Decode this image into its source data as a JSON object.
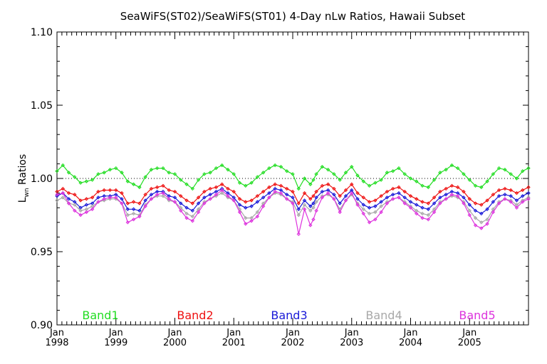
{
  "chart_data": {
    "type": "line",
    "title": "SeaWiFS(ST02)/SeaWiFS(ST01) 4-Day nLw Ratios, Hawaii Subset",
    "xlabel": "",
    "ylabel": "L_wn Ratios",
    "ylabel_main": "L",
    "ylabel_sub": "wn",
    "ylabel_rest": " Ratios",
    "xlim": [
      1998.0,
      2006.0
    ],
    "ylim": [
      0.9,
      1.1
    ],
    "y_ticks": [
      "0.90",
      "0.95",
      "1.00",
      "1.05",
      "1.10"
    ],
    "y_tick_values": [
      0.9,
      0.95,
      1.0,
      1.05,
      1.1
    ],
    "x_ticks": [
      {
        "month": "Jan",
        "year": "1998",
        "value": 1998.0
      },
      {
        "month": "Jan",
        "year": "1999",
        "value": 1999.0
      },
      {
        "month": "Jan",
        "year": "2000",
        "value": 2000.0
      },
      {
        "month": "Jan",
        "year": "2001",
        "value": 2001.0
      },
      {
        "month": "Jan",
        "year": "2002",
        "value": 2002.0
      },
      {
        "month": "Jan",
        "year": "2003",
        "value": 2003.0
      },
      {
        "month": "Jan",
        "year": "2004",
        "value": 2004.0
      },
      {
        "month": "Jan",
        "year": "2005",
        "value": 2005.0
      }
    ],
    "reference_line": 1.0,
    "legend_placement": "bottom, inside plot",
    "series": [
      {
        "name": "Band1",
        "color": "#22dd22",
        "x": [
          1998.0,
          1998.1,
          1998.2,
          1998.3,
          1998.4,
          1998.5,
          1998.6,
          1998.7,
          1998.8,
          1998.9,
          1999.0,
          1999.1,
          1999.2,
          1999.3,
          1999.4,
          1999.5,
          1999.6,
          1999.7,
          1999.8,
          1999.9,
          2000.0,
          2000.1,
          2000.2,
          2000.3,
          2000.4,
          2000.5,
          2000.6,
          2000.7,
          2000.8,
          2000.9,
          2001.0,
          2001.1,
          2001.2,
          2001.3,
          2001.4,
          2001.5,
          2001.6,
          2001.7,
          2001.8,
          2001.9,
          2002.0,
          2002.1,
          2002.2,
          2002.3,
          2002.35,
          2002.4,
          2002.5,
          2002.6,
          2002.7,
          2002.8,
          2002.9,
          2003.0,
          2003.1,
          2003.2,
          2003.3,
          2003.4,
          2003.5,
          2003.6,
          2003.7,
          2003.8,
          2003.9,
          2004.0,
          2004.1,
          2004.2,
          2004.3,
          2004.4,
          2004.5,
          2004.6,
          2004.7,
          2004.8,
          2004.9,
          2005.0,
          2005.1,
          2005.2,
          2005.3,
          2005.4,
          2005.5,
          2005.6,
          2005.7,
          2005.8,
          2005.9,
          2006.0
        ],
        "y": [
          1.005,
          1.009,
          1.004,
          1.001,
          0.997,
          0.998,
          0.999,
          1.003,
          1.004,
          1.006,
          1.007,
          1.004,
          0.998,
          0.996,
          0.994,
          1.001,
          1.006,
          1.007,
          1.007,
          1.004,
          1.003,
          0.999,
          0.996,
          0.993,
          0.999,
          1.003,
          1.004,
          1.007,
          1.009,
          1.006,
          1.003,
          0.997,
          0.995,
          0.997,
          1.001,
          1.004,
          1.007,
          1.009,
          1.008,
          1.005,
          1.003,
          0.993,
          1.0,
          0.996,
          0.999,
          1.003,
          1.008,
          1.006,
          1.003,
          0.999,
          1.004,
          1.008,
          1.002,
          0.998,
          0.995,
          0.997,
          0.999,
          1.004,
          1.005,
          1.007,
          1.003,
          1.0,
          0.998,
          0.995,
          0.994,
          0.999,
          1.004,
          1.006,
          1.009,
          1.007,
          1.003,
          0.999,
          0.995,
          0.994,
          0.998,
          1.003,
          1.007,
          1.006,
          1.003,
          1.0,
          1.005,
          1.007
        ]
      },
      {
        "name": "Band2",
        "color": "#ee1111",
        "x": [
          1998.0,
          1998.1,
          1998.2,
          1998.3,
          1998.4,
          1998.5,
          1998.6,
          1998.7,
          1998.8,
          1998.9,
          1999.0,
          1999.1,
          1999.2,
          1999.3,
          1999.4,
          1999.5,
          1999.6,
          1999.7,
          1999.8,
          1999.9,
          2000.0,
          2000.1,
          2000.2,
          2000.3,
          2000.4,
          2000.5,
          2000.6,
          2000.7,
          2000.8,
          2000.9,
          2001.0,
          2001.1,
          2001.2,
          2001.3,
          2001.4,
          2001.5,
          2001.6,
          2001.7,
          2001.8,
          2001.9,
          2002.0,
          2002.1,
          2002.2,
          2002.3,
          2002.35,
          2002.4,
          2002.5,
          2002.6,
          2002.7,
          2002.8,
          2002.9,
          2003.0,
          2003.1,
          2003.2,
          2003.3,
          2003.4,
          2003.5,
          2003.6,
          2003.7,
          2003.8,
          2003.9,
          2004.0,
          2004.1,
          2004.2,
          2004.3,
          2004.4,
          2004.5,
          2004.6,
          2004.7,
          2004.8,
          2004.9,
          2005.0,
          2005.1,
          2005.2,
          2005.3,
          2005.4,
          2005.5,
          2005.6,
          2005.7,
          2005.8,
          2005.9,
          2006.0
        ],
        "y": [
          0.991,
          0.993,
          0.99,
          0.989,
          0.985,
          0.986,
          0.987,
          0.991,
          0.992,
          0.992,
          0.992,
          0.99,
          0.983,
          0.984,
          0.983,
          0.989,
          0.993,
          0.994,
          0.995,
          0.992,
          0.991,
          0.988,
          0.985,
          0.983,
          0.987,
          0.991,
          0.993,
          0.994,
          0.996,
          0.993,
          0.991,
          0.986,
          0.984,
          0.985,
          0.988,
          0.991,
          0.994,
          0.996,
          0.995,
          0.993,
          0.991,
          0.983,
          0.99,
          0.986,
          0.988,
          0.991,
          0.995,
          0.996,
          0.993,
          0.988,
          0.992,
          0.996,
          0.99,
          0.987,
          0.984,
          0.985,
          0.988,
          0.991,
          0.993,
          0.994,
          0.991,
          0.988,
          0.986,
          0.984,
          0.983,
          0.987,
          0.991,
          0.993,
          0.995,
          0.994,
          0.991,
          0.986,
          0.983,
          0.982,
          0.985,
          0.989,
          0.992,
          0.993,
          0.992,
          0.99,
          0.992,
          0.994
        ]
      },
      {
        "name": "Band3",
        "color": "#1a1ad8",
        "x": [
          1998.0,
          1998.1,
          1998.2,
          1998.3,
          1998.4,
          1998.5,
          1998.6,
          1998.7,
          1998.8,
          1998.9,
          1999.0,
          1999.1,
          1999.2,
          1999.3,
          1999.4,
          1999.5,
          1999.6,
          1999.7,
          1999.8,
          1999.9,
          2000.0,
          2000.1,
          2000.2,
          2000.3,
          2000.4,
          2000.5,
          2000.6,
          2000.7,
          2000.8,
          2000.9,
          2001.0,
          2001.1,
          2001.2,
          2001.3,
          2001.4,
          2001.5,
          2001.6,
          2001.7,
          2001.8,
          2001.9,
          2002.0,
          2002.1,
          2002.2,
          2002.3,
          2002.35,
          2002.4,
          2002.5,
          2002.6,
          2002.7,
          2002.8,
          2002.9,
          2003.0,
          2003.1,
          2003.2,
          2003.3,
          2003.4,
          2003.5,
          2003.6,
          2003.7,
          2003.8,
          2003.9,
          2004.0,
          2004.1,
          2004.2,
          2004.3,
          2004.4,
          2004.5,
          2004.6,
          2004.7,
          2004.8,
          2004.9,
          2005.0,
          2005.1,
          2005.2,
          2005.3,
          2005.4,
          2005.5,
          2005.6,
          2005.7,
          2005.8,
          2005.9,
          2006.0
        ],
        "y": [
          0.988,
          0.99,
          0.986,
          0.984,
          0.98,
          0.982,
          0.983,
          0.987,
          0.988,
          0.988,
          0.989,
          0.986,
          0.979,
          0.979,
          0.978,
          0.985,
          0.989,
          0.991,
          0.991,
          0.988,
          0.987,
          0.983,
          0.98,
          0.978,
          0.983,
          0.987,
          0.989,
          0.991,
          0.993,
          0.99,
          0.987,
          0.982,
          0.98,
          0.981,
          0.984,
          0.987,
          0.99,
          0.993,
          0.992,
          0.989,
          0.987,
          0.979,
          0.985,
          0.981,
          0.983,
          0.987,
          0.991,
          0.992,
          0.989,
          0.983,
          0.988,
          0.992,
          0.986,
          0.982,
          0.98,
          0.981,
          0.984,
          0.987,
          0.989,
          0.99,
          0.987,
          0.984,
          0.982,
          0.98,
          0.979,
          0.983,
          0.987,
          0.989,
          0.991,
          0.99,
          0.987,
          0.982,
          0.978,
          0.976,
          0.979,
          0.984,
          0.988,
          0.989,
          0.988,
          0.985,
          0.988,
          0.99
        ]
      },
      {
        "name": "Band4",
        "color": "#a8a8a8",
        "x": [
          1998.0,
          1998.1,
          1998.2,
          1998.3,
          1998.4,
          1998.5,
          1998.6,
          1998.7,
          1998.8,
          1998.9,
          1999.0,
          1999.1,
          1999.2,
          1999.3,
          1999.4,
          1999.5,
          1999.6,
          1999.7,
          1999.8,
          1999.9,
          2000.0,
          2000.1,
          2000.2,
          2000.3,
          2000.4,
          2000.5,
          2000.6,
          2000.7,
          2000.8,
          2000.9,
          2001.0,
          2001.1,
          2001.2,
          2001.3,
          2001.4,
          2001.5,
          2001.6,
          2001.7,
          2001.8,
          2001.9,
          2002.0,
          2002.1,
          2002.2,
          2002.3,
          2002.35,
          2002.4,
          2002.5,
          2002.6,
          2002.7,
          2002.8,
          2002.9,
          2003.0,
          2003.1,
          2003.2,
          2003.3,
          2003.4,
          2003.5,
          2003.6,
          2003.7,
          2003.8,
          2003.9,
          2004.0,
          2004.1,
          2004.2,
          2004.3,
          2004.4,
          2004.5,
          2004.6,
          2004.7,
          2004.8,
          2004.9,
          2005.0,
          2005.1,
          2005.2,
          2005.3,
          2005.4,
          2005.5,
          2005.6,
          2005.7,
          2005.8,
          2005.9,
          2006.0
        ],
        "y": [
          0.985,
          0.987,
          0.983,
          0.982,
          0.978,
          0.979,
          0.981,
          0.984,
          0.985,
          0.986,
          0.986,
          0.983,
          0.975,
          0.976,
          0.975,
          0.982,
          0.986,
          0.988,
          0.988,
          0.985,
          0.984,
          0.98,
          0.976,
          0.974,
          0.979,
          0.984,
          0.986,
          0.988,
          0.99,
          0.987,
          0.985,
          0.979,
          0.973,
          0.973,
          0.977,
          0.983,
          0.987,
          0.99,
          0.989,
          0.986,
          0.984,
          0.975,
          0.982,
          0.978,
          0.98,
          0.984,
          0.988,
          0.989,
          0.986,
          0.979,
          0.985,
          0.989,
          0.983,
          0.979,
          0.976,
          0.977,
          0.981,
          0.984,
          0.986,
          0.987,
          0.984,
          0.981,
          0.978,
          0.976,
          0.975,
          0.979,
          0.984,
          0.986,
          0.988,
          0.987,
          0.984,
          0.978,
          0.973,
          0.97,
          0.972,
          0.979,
          0.984,
          0.986,
          0.985,
          0.982,
          0.985,
          0.987
        ]
      },
      {
        "name": "Band5",
        "color": "#dd33dd",
        "x": [
          1998.0,
          1998.1,
          1998.2,
          1998.3,
          1998.4,
          1998.5,
          1998.6,
          1998.7,
          1998.8,
          1998.9,
          1999.0,
          1999.1,
          1999.2,
          1999.3,
          1999.4,
          1999.5,
          1999.6,
          1999.7,
          1999.8,
          1999.9,
          2000.0,
          2000.1,
          2000.2,
          2000.3,
          2000.4,
          2000.5,
          2000.6,
          2000.7,
          2000.8,
          2000.9,
          2001.0,
          2001.1,
          2001.2,
          2001.3,
          2001.4,
          2001.5,
          2001.6,
          2001.7,
          2001.8,
          2001.9,
          2002.0,
          2002.1,
          2002.2,
          2002.3,
          2002.35,
          2002.4,
          2002.5,
          2002.6,
          2002.7,
          2002.8,
          2002.9,
          2003.0,
          2003.1,
          2003.2,
          2003.3,
          2003.4,
          2003.5,
          2003.6,
          2003.7,
          2003.8,
          2003.9,
          2004.0,
          2004.1,
          2004.2,
          2004.3,
          2004.4,
          2004.5,
          2004.6,
          2004.7,
          2004.8,
          2004.9,
          2005.0,
          2005.1,
          2005.2,
          2005.3,
          2005.4,
          2005.5,
          2005.6,
          2005.7,
          2005.8,
          2005.9,
          2006.0
        ],
        "y": [
          0.989,
          0.99,
          0.983,
          0.978,
          0.975,
          0.977,
          0.979,
          0.984,
          0.986,
          0.987,
          0.987,
          0.983,
          0.97,
          0.972,
          0.974,
          0.981,
          0.986,
          0.989,
          0.99,
          0.986,
          0.984,
          0.978,
          0.973,
          0.971,
          0.977,
          0.983,
          0.986,
          0.989,
          0.992,
          0.988,
          0.985,
          0.977,
          0.969,
          0.971,
          0.974,
          0.981,
          0.987,
          0.991,
          0.99,
          0.986,
          0.983,
          0.962,
          0.979,
          0.968,
          0.972,
          0.978,
          0.987,
          0.99,
          0.986,
          0.977,
          0.985,
          0.99,
          0.982,
          0.976,
          0.97,
          0.972,
          0.977,
          0.983,
          0.986,
          0.987,
          0.983,
          0.98,
          0.976,
          0.973,
          0.972,
          0.977,
          0.983,
          0.986,
          0.989,
          0.988,
          0.983,
          0.975,
          0.968,
          0.966,
          0.969,
          0.977,
          0.983,
          0.986,
          0.984,
          0.98,
          0.984,
          0.986
        ]
      }
    ]
  }
}
